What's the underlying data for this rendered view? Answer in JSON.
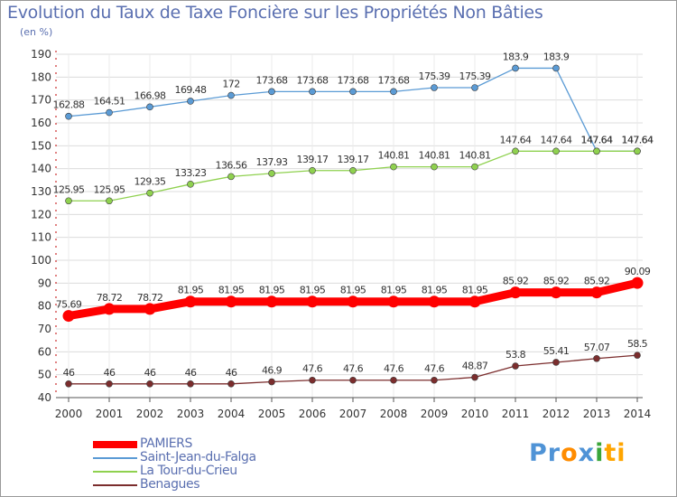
{
  "chart_data": {
    "type": "line",
    "title": "Evolution du Taux de Taxe Foncière sur les Propriétés Non Bâties",
    "ylabel": "(en %)",
    "ylim": [
      40,
      190
    ],
    "yticks": [
      "40",
      "50",
      "60",
      "70",
      "80",
      "90",
      "100",
      "110",
      "120",
      "130",
      "140",
      "150",
      "160",
      "170",
      "180",
      "190"
    ],
    "categories": [
      "2000",
      "2001",
      "2002",
      "2003",
      "2004",
      "2005",
      "2006",
      "2007",
      "2008",
      "2009",
      "2010",
      "2011",
      "2012",
      "2013",
      "2014"
    ],
    "series": [
      {
        "name": "PAMIERS",
        "color": "#ff0000",
        "values": [
          75.69,
          78.72,
          78.72,
          81.95,
          81.95,
          81.95,
          81.95,
          81.95,
          81.95,
          81.95,
          81.95,
          85.92,
          85.92,
          85.92,
          90.09
        ],
        "labels": [
          "75.69",
          "78.72",
          "78.72",
          "81.95",
          "81.95",
          "81.95",
          "81.95",
          "81.95",
          "81.95",
          "81.95",
          "81.95",
          "85.92",
          "85.92",
          "85.92",
          "90.09"
        ]
      },
      {
        "name": "Saint-Jean-du-Falga",
        "color": "#5b9bd5",
        "values": [
          162.88,
          164.51,
          166.98,
          169.48,
          172,
          173.68,
          173.68,
          173.68,
          173.68,
          175.39,
          175.39,
          183.9,
          183.9,
          147.64,
          147.64
        ],
        "labels": [
          "162.88",
          "164.51",
          "166.98",
          "169.48",
          "172",
          "173.68",
          "173.68",
          "173.68",
          "173.68",
          "175.39",
          "175.39",
          "183.9",
          "183.9",
          "147.64",
          "147.64"
        ]
      },
      {
        "name": "La Tour-du-Crieu",
        "color": "#8fd14f",
        "values": [
          125.95,
          125.95,
          129.35,
          133.23,
          136.56,
          137.93,
          139.17,
          139.17,
          140.81,
          140.81,
          140.81,
          147.64,
          147.64,
          147.64,
          147.64
        ],
        "labels": [
          "125.95",
          "125.95",
          "129.35",
          "133.23",
          "136.56",
          "137.93",
          "139.17",
          "139.17",
          "140.81",
          "140.81",
          "140.81",
          "147.64",
          "147.64",
          "147.64",
          "147.64"
        ]
      },
      {
        "name": "Benagues",
        "color": "#7b2d2d",
        "values": [
          46,
          46,
          46,
          46,
          46,
          46.9,
          47.6,
          47.6,
          47.6,
          47.6,
          48.87,
          53.8,
          55.41,
          57.07,
          58.5
        ],
        "labels": [
          "46",
          "46",
          "46",
          "46",
          "46",
          "46.9",
          "47.6",
          "47.6",
          "47.6",
          "47.6",
          "48.87",
          "53.8",
          "55.41",
          "57.07",
          "58.5"
        ]
      }
    ],
    "legend_position": "bottom-left"
  },
  "logo": {
    "text_parts": [
      "Pr",
      "o",
      "x",
      "i",
      "ti"
    ],
    "colors": [
      "#4f93d6",
      "#ff8c00",
      "#4f93d6",
      "#3aa63a",
      "#ffa500"
    ]
  }
}
